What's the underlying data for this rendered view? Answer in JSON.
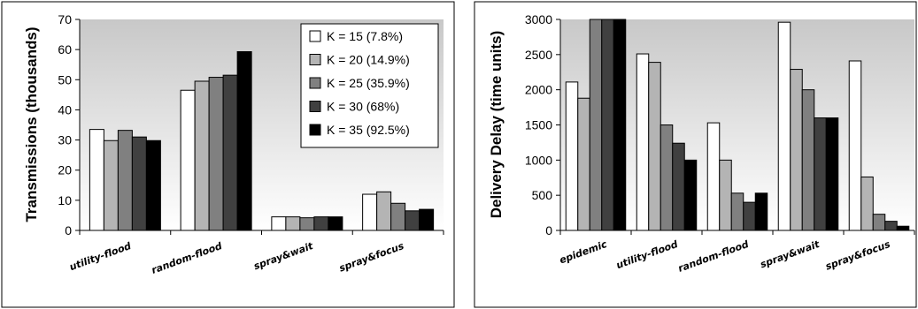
{
  "colors": {
    "K15": "#ffffff",
    "K20": "#b4b4b4",
    "K25": "#808080",
    "K30": "#404040",
    "K35": "#000000",
    "plot_bg_top": "#c8c8c8",
    "plot_bg_bottom": "#ffffff"
  },
  "chart_data": [
    {
      "type": "bar",
      "title": "",
      "ylabel": "Transmissions (thousands)",
      "xlabel": "",
      "ylim": [
        0,
        70
      ],
      "yticks": [
        0,
        10,
        20,
        30,
        40,
        50,
        60,
        70
      ],
      "grid": false,
      "legend_position": "top-right",
      "categories": [
        "utility-flood",
        "random-flood",
        "spray&wait",
        "spray&focus"
      ],
      "series": [
        {
          "name": "K = 15 (7.8%)",
          "color_key": "K15",
          "values": [
            33.5,
            46.5,
            4.5,
            12
          ]
        },
        {
          "name": "K = 20 (14.9%)",
          "color_key": "K20",
          "values": [
            29.8,
            49.5,
            4.5,
            12.8
          ]
        },
        {
          "name": "K = 25 (35.9%)",
          "color_key": "K25",
          "values": [
            33.2,
            50.8,
            4.2,
            9
          ]
        },
        {
          "name": "K = 30  (68%)",
          "color_key": "K30",
          "values": [
            31,
            51.5,
            4.5,
            6.5
          ]
        },
        {
          "name": "K = 35 (92.5%)",
          "color_key": "K35",
          "values": [
            29.8,
            59.3,
            4.5,
            7
          ]
        }
      ]
    },
    {
      "type": "bar",
      "title": "",
      "ylabel": "Delivery Delay (time units)",
      "xlabel": "",
      "ylim": [
        0,
        3000
      ],
      "yticks": [
        0,
        500,
        1000,
        1500,
        2000,
        2500,
        3000
      ],
      "grid": false,
      "legend_position": "none",
      "categories": [
        "epidemic",
        "utility-flood",
        "random-flood",
        "spray&wait",
        "spray&focus"
      ],
      "series": [
        {
          "name": "K = 15 (7.8%)",
          "color_key": "K15",
          "values": [
            2110,
            2510,
            1530,
            2960,
            2410
          ]
        },
        {
          "name": "K = 20 (14.9%)",
          "color_key": "K20",
          "values": [
            1880,
            2390,
            1000,
            2290,
            760
          ]
        },
        {
          "name": "K = 25 (35.9%)",
          "color_key": "K25",
          "values": [
            3000,
            1500,
            530,
            2000,
            230
          ]
        },
        {
          "name": "K = 30  (68%)",
          "color_key": "K30",
          "values": [
            3000,
            1240,
            400,
            1600,
            130
          ]
        },
        {
          "name": "K = 35 (92.5%)",
          "color_key": "K35",
          "values": [
            3000,
            1000,
            530,
            1600,
            60
          ]
        }
      ]
    }
  ]
}
